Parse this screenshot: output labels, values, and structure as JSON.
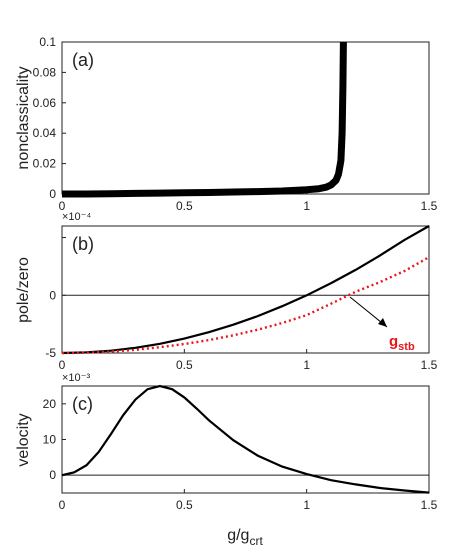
{
  "chart_data": [
    {
      "type": "line",
      "panel_label": "(a)",
      "xlabel": "",
      "ylabel": "nonclassicality",
      "xlim": [
        0,
        1.5
      ],
      "ylim": [
        0,
        0.1
      ],
      "xticks": [
        "0",
        "0.5",
        "1",
        "1.5"
      ],
      "yticks": [
        "0",
        "0.02",
        "0.04",
        "0.06",
        "0.08",
        "0.1"
      ],
      "grid": false,
      "series": [
        {
          "color": "#000000",
          "style": "thick-markers",
          "x": [
            0,
            0.1,
            0.2,
            0.3,
            0.4,
            0.5,
            0.6,
            0.7,
            0.8,
            0.9,
            1.0,
            1.05,
            1.08,
            1.1,
            1.12,
            1.13,
            1.14,
            1.145,
            1.148,
            1.15
          ],
          "y": [
            0.0,
            0.0,
            0.0002,
            0.0004,
            0.0006,
            0.0008,
            0.001,
            0.0013,
            0.0016,
            0.002,
            0.0028,
            0.0035,
            0.0045,
            0.006,
            0.009,
            0.013,
            0.022,
            0.04,
            0.07,
            0.1
          ]
        }
      ]
    },
    {
      "type": "line",
      "panel_label": "(b)",
      "xlabel": "",
      "ylabel": "pole/zero",
      "exponent": "×10⁻⁴",
      "xlim": [
        0,
        1.5
      ],
      "ylim": [
        -5,
        6
      ],
      "xticks": [
        "0",
        "0.5",
        "1",
        "1.5"
      ],
      "yticks": [
        "-5",
        "0"
      ],
      "hline": 0,
      "annotation": {
        "label_main": "g",
        "label_sub": "stb",
        "color": "#e8151b",
        "point": [
          1.15,
          0
        ]
      },
      "series": [
        {
          "color": "#000000",
          "style": "solid",
          "x": [
            0,
            0.1,
            0.2,
            0.3,
            0.4,
            0.5,
            0.6,
            0.7,
            0.8,
            0.9,
            1.0,
            1.1,
            1.2,
            1.3,
            1.4,
            1.5
          ],
          "y": [
            -5,
            -4.95,
            -4.8,
            -4.55,
            -4.2,
            -3.75,
            -3.2,
            -2.55,
            -1.8,
            -0.95,
            0.0,
            1.05,
            2.2,
            3.45,
            4.8,
            6.0
          ]
        },
        {
          "color": "#e8151b",
          "style": "dotted",
          "x": [
            0,
            0.1,
            0.2,
            0.3,
            0.4,
            0.5,
            0.6,
            0.7,
            0.8,
            0.9,
            1.0,
            1.1,
            1.2,
            1.3,
            1.4,
            1.5
          ],
          "y": [
            -5,
            -4.97,
            -4.88,
            -4.72,
            -4.5,
            -4.22,
            -3.88,
            -3.47,
            -2.98,
            -2.4,
            -1.72,
            -0.73,
            0.3,
            1.15,
            2.1,
            3.3
          ]
        }
      ]
    },
    {
      "type": "line",
      "panel_label": "(c)",
      "xlabel": "g/g",
      "xlabel_sub": "crt",
      "ylabel": "velocity",
      "exponent": "×10⁻³",
      "xlim": [
        0,
        1.5
      ],
      "ylim": [
        -5,
        25
      ],
      "xticks": [
        "0",
        "0.5",
        "1",
        "1.5"
      ],
      "yticks": [
        "0",
        "10",
        "20"
      ],
      "hline": 0,
      "series": [
        {
          "color": "#000000",
          "style": "solid",
          "x": [
            0,
            0.05,
            0.1,
            0.15,
            0.2,
            0.25,
            0.3,
            0.35,
            0.4,
            0.45,
            0.5,
            0.55,
            0.6,
            0.7,
            0.8,
            0.9,
            1.0,
            1.1,
            1.2,
            1.3,
            1.4,
            1.5
          ],
          "y": [
            0,
            0.8,
            2.8,
            6.5,
            11.5,
            16.8,
            21.2,
            24.1,
            25.0,
            24.1,
            21.8,
            18.7,
            15.4,
            9.8,
            5.5,
            2.4,
            0.3,
            -1.4,
            -2.6,
            -3.6,
            -4.3,
            -4.9
          ]
        }
      ]
    }
  ]
}
